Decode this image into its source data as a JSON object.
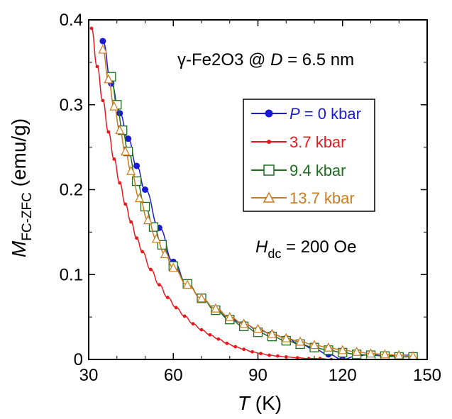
{
  "chart_data": {
    "type": "scatter",
    "title": "",
    "xlabel": "T (K)",
    "ylabel": "M_FC-ZFC (emu/g)",
    "xlim": [
      30,
      150
    ],
    "ylim": [
      0,
      0.4
    ],
    "xticks": [
      30,
      60,
      90,
      120,
      150
    ],
    "yticks": [
      0,
      0.1,
      0.2,
      0.3,
      0.4
    ],
    "grid": false,
    "legend_position": "top-right",
    "annotations": [
      {
        "text": "γ-Fe2O3 @ D = 6.5 nm"
      },
      {
        "text": "H_dc = 200 Oe"
      }
    ],
    "series": [
      {
        "name": "P = 0 kbar",
        "color": "#1a1ad6",
        "marker": "filled-circle",
        "x": [
          35,
          38,
          41,
          44,
          47,
          50,
          55,
          60,
          65,
          70,
          75,
          80,
          85,
          90,
          95,
          100,
          105,
          110,
          115,
          120,
          125,
          130,
          135,
          140,
          145
        ],
        "y": [
          0.375,
          0.325,
          0.29,
          0.26,
          0.228,
          0.2,
          0.155,
          0.115,
          0.088,
          0.072,
          0.058,
          0.048,
          0.042,
          0.035,
          0.03,
          0.025,
          0.018,
          0.012,
          0.006,
          0.0,
          0.004,
          0.006,
          0.004,
          0.005,
          0.005
        ]
      },
      {
        "name": "3.7 kbar",
        "color": "#e8181e",
        "marker": "small-filled-circle",
        "x": [
          31,
          33,
          35,
          37,
          39,
          41,
          43,
          45,
          47,
          49,
          52,
          55,
          58,
          61,
          64,
          67,
          70,
          73,
          76,
          79,
          82,
          85,
          88,
          91,
          94,
          97,
          100,
          104,
          108,
          112,
          116,
          120
        ],
        "y": [
          0.39,
          0.345,
          0.305,
          0.268,
          0.236,
          0.208,
          0.183,
          0.162,
          0.143,
          0.127,
          0.106,
          0.088,
          0.073,
          0.061,
          0.051,
          0.042,
          0.035,
          0.029,
          0.024,
          0.019,
          0.015,
          0.012,
          0.009,
          0.007,
          0.005,
          0.004,
          0.003,
          0.002,
          0.001,
          0.001,
          0.0,
          0.0
        ]
      },
      {
        "name": "9.4 kbar",
        "color": "#1f6e1f",
        "marker": "open-square",
        "x": [
          38,
          40,
          42,
          44,
          47,
          50,
          53,
          56,
          60,
          65,
          70,
          75,
          80,
          85,
          90,
          95,
          100,
          105,
          110,
          115,
          120,
          125,
          130,
          135,
          140,
          145
        ],
        "y": [
          0.333,
          0.3,
          0.27,
          0.245,
          0.21,
          0.18,
          0.156,
          0.135,
          0.11,
          0.089,
          0.072,
          0.058,
          0.047,
          0.039,
          0.032,
          0.027,
          0.022,
          0.018,
          0.014,
          0.011,
          0.008,
          0.006,
          0.005,
          0.004,
          0.003,
          0.003
        ]
      },
      {
        "name": "13.7 kbar",
        "color": "#cc7a1e",
        "marker": "open-triangle",
        "x": [
          35,
          37,
          39,
          41,
          43,
          45,
          48,
          51,
          54,
          57,
          60,
          65,
          70,
          75,
          80,
          85,
          90,
          95,
          100,
          105,
          110,
          115,
          120,
          125,
          130,
          135,
          140,
          145
        ],
        "y": [
          0.365,
          0.33,
          0.298,
          0.27,
          0.245,
          0.222,
          0.19,
          0.164,
          0.142,
          0.124,
          0.108,
          0.088,
          0.072,
          0.06,
          0.05,
          0.042,
          0.036,
          0.03,
          0.025,
          0.021,
          0.017,
          0.014,
          0.011,
          0.009,
          0.007,
          0.006,
          0.005,
          0.004
        ]
      }
    ]
  },
  "labels": {
    "annotation_gamma_prefix": "γ-Fe2O3 @ ",
    "annotation_D": "D",
    "annotation_D_value": " = 6.5 nm",
    "annotation_H": "H",
    "annotation_H_sub": "dc",
    "annotation_H_value": " = 200 Oe",
    "legend_P": "P",
    "legend_P_rest": " = 0 kbar",
    "ylabel_M": "M",
    "ylabel_sub": "FC-ZFC",
    "ylabel_unit": " (emu/g)",
    "xlabel_T": "T",
    "xlabel_unit": " (K)"
  }
}
